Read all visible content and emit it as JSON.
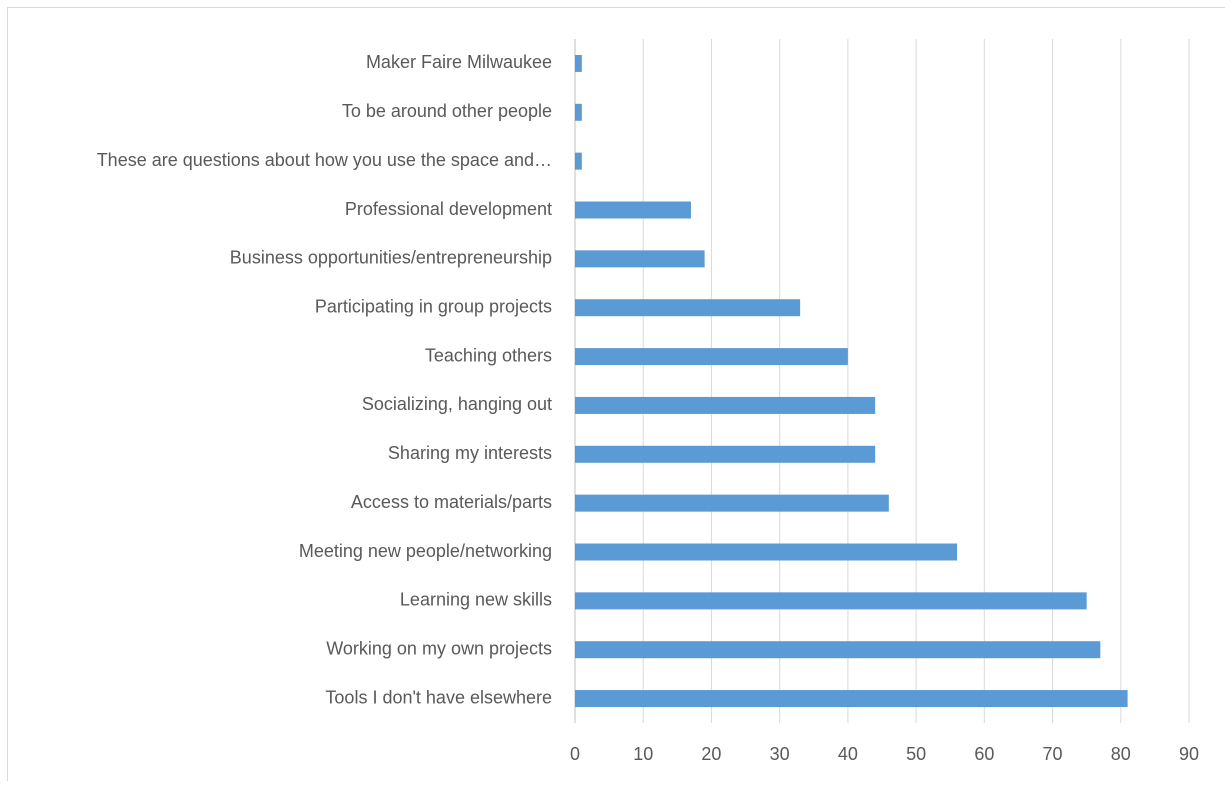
{
  "chart_data": {
    "type": "hbar",
    "categories": [
      "Maker Faire Milwaukee",
      "To be around other people",
      "These are questions about how you use the space and…",
      "Professional development",
      "Business opportunities/entrepreneurship",
      "Participating in group projects",
      "Teaching others",
      "Socializing, hanging out",
      "Sharing my interests",
      "Access to materials/parts",
      "Meeting new people/networking",
      "Learning new skills",
      "Working on my own projects",
      "Tools I don't have elsewhere"
    ],
    "values": [
      1,
      1,
      1,
      17,
      19,
      33,
      40,
      44,
      44,
      46,
      56,
      75,
      77,
      81
    ],
    "color": "#5b9bd5",
    "xlim": [
      0,
      90
    ],
    "xticks": [
      0,
      10,
      20,
      30,
      40,
      50,
      60,
      70,
      80,
      90
    ],
    "grid": true
  }
}
